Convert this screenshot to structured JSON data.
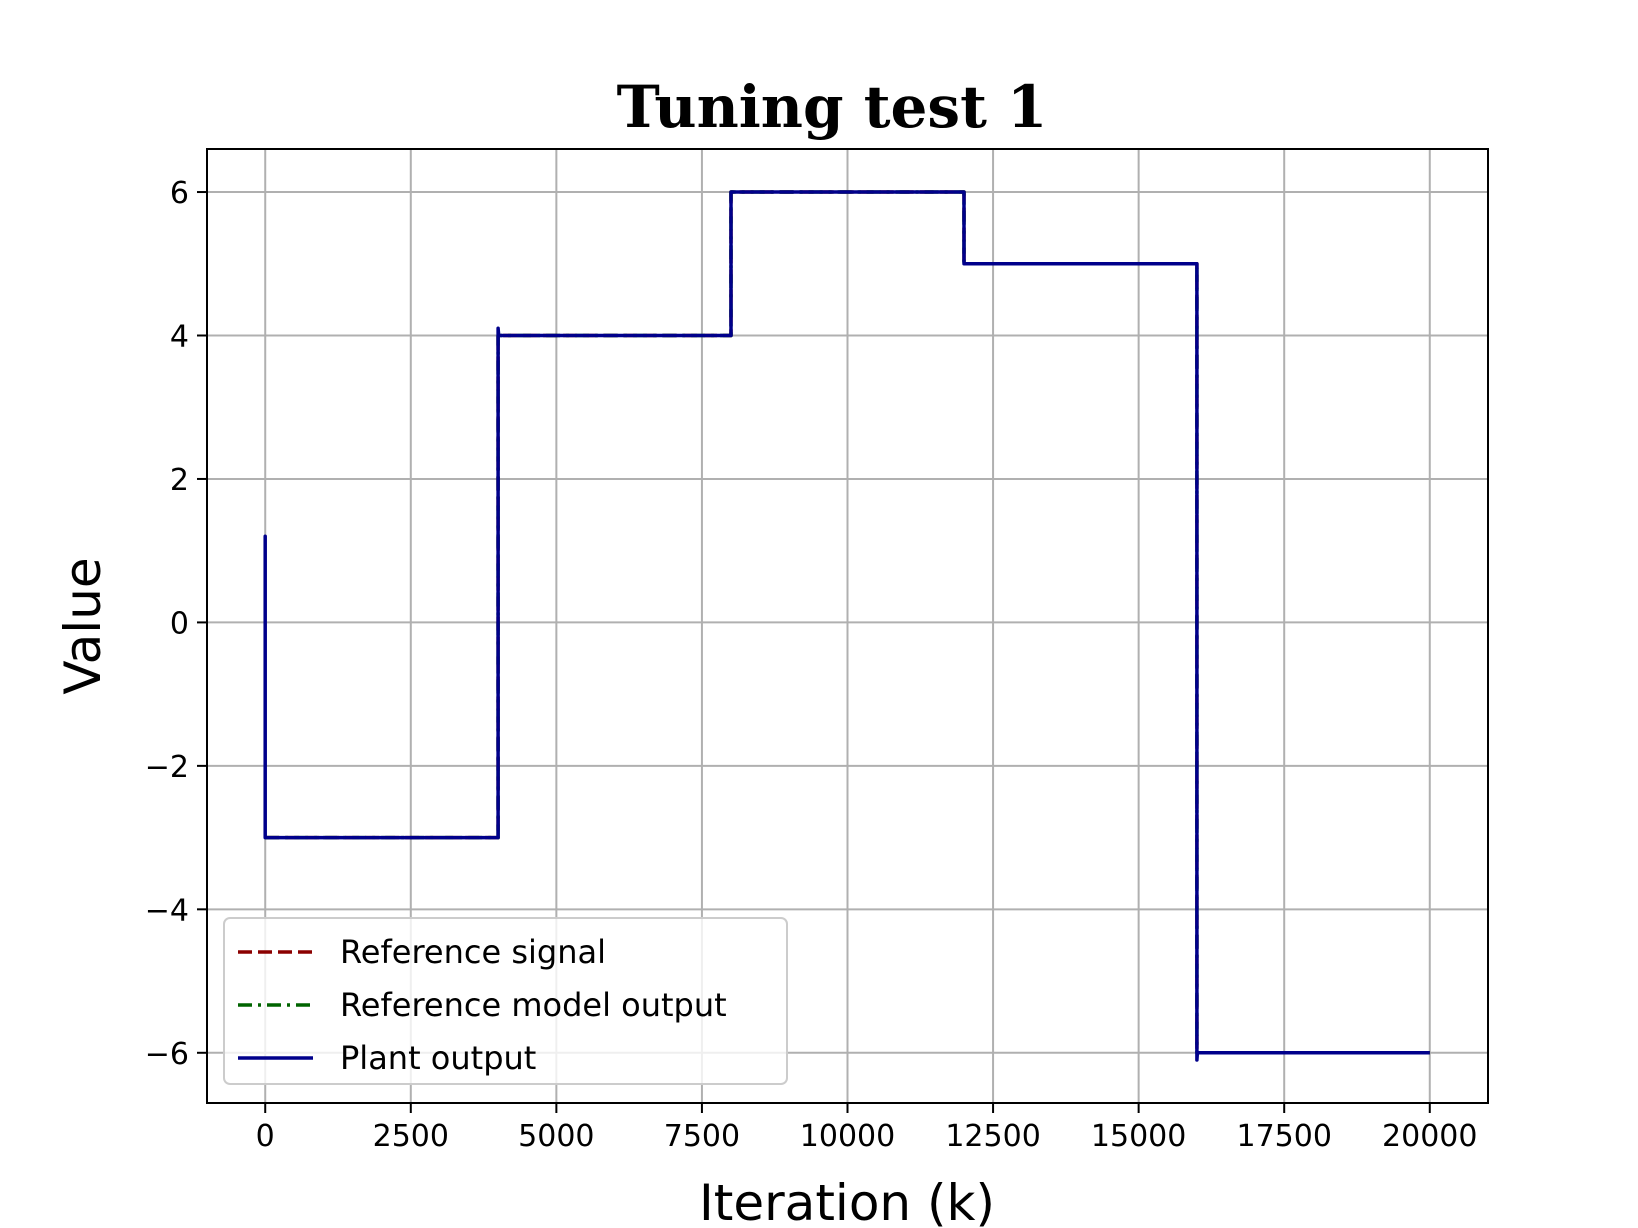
{
  "chart_data": {
    "type": "line",
    "title": "Tuning test 1",
    "xlabel": "Iteration (k)",
    "ylabel": "Value",
    "xlim": [
      -1000,
      21000
    ],
    "ylim": [
      -6.7,
      6.6
    ],
    "xticks": [
      0,
      2500,
      5000,
      7500,
      10000,
      12500,
      15000,
      17500,
      20000
    ],
    "xtick_labels": [
      "0",
      "2500",
      "5000",
      "7500",
      "10000",
      "12500",
      "15000",
      "17500",
      "20000"
    ],
    "yticks": [
      -6,
      -4,
      -2,
      0,
      2,
      4,
      6
    ],
    "ytick_labels": [
      "−6",
      "−4",
      "−2",
      "0",
      "2",
      "4",
      "6"
    ],
    "grid": true,
    "legend_position": "lower-left",
    "series": [
      {
        "name": "Reference signal",
        "color": "#8b0000",
        "style": "dashed",
        "x": [
          0,
          4000,
          4000,
          8000,
          8000,
          12000,
          12000,
          16000,
          16000,
          20000
        ],
        "y": [
          -3,
          -3,
          4,
          4,
          6,
          6,
          5,
          5,
          -6,
          -6
        ]
      },
      {
        "name": "Reference model output",
        "color": "#006400",
        "style": "dashdot",
        "x": [
          0,
          4000,
          4000,
          8000,
          8000,
          12000,
          12000,
          16000,
          16000,
          20000
        ],
        "y": [
          -3,
          -3,
          4,
          4,
          6,
          6,
          5,
          5,
          -6,
          -6
        ]
      },
      {
        "name": "Plant output",
        "color": "#00008b",
        "style": "solid",
        "x": [
          0,
          0,
          0,
          10,
          4000,
          4000,
          4010,
          4020,
          8000,
          8000,
          12000,
          12000,
          16000,
          16000,
          16010,
          20000
        ],
        "y": [
          0,
          1.2,
          -3,
          -3,
          -3,
          4.1,
          4,
          4,
          4,
          6,
          6,
          5,
          5,
          -6.1,
          -6,
          -6
        ]
      }
    ]
  }
}
